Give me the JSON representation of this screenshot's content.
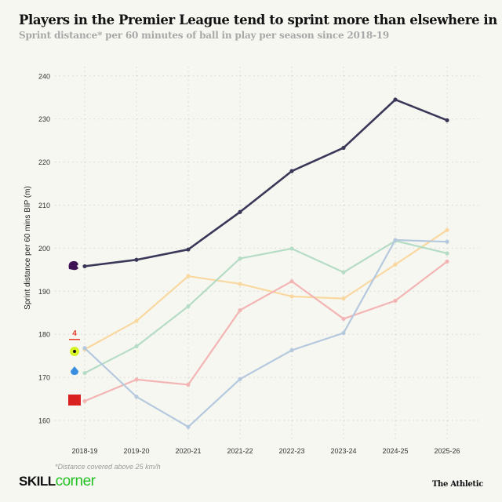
{
  "header": {
    "title": "Players in the Premier League tend to sprint more than elsewhere in Europe",
    "subtitle": "Sprint distance* per 60 minutes of ball in play per season since 2018-19"
  },
  "footer": {
    "note": "*Distance covered above 25 km/h",
    "brand_a": "SKILL",
    "brand_b": "corner",
    "publisher": "The Athletic"
  },
  "chart_data": {
    "type": "line",
    "title": "Players in the Premier League tend to sprint more than elsewhere in Europe",
    "ylabel": "Sprint distance per 60 mins BIP (m)",
    "xlabel": "",
    "categories": [
      "2018-19",
      "2019-20",
      "2020-21",
      "2021-22",
      "2022-23",
      "2023-24",
      "2024-25",
      "2025-26"
    ],
    "ylim": [
      156,
      244
    ],
    "yticks": [
      160,
      170,
      180,
      190,
      200,
      210,
      220,
      230,
      240
    ],
    "grid": true,
    "series": [
      {
        "color": "#f9d8a0",
        "values": [
          176.5,
          183.1,
          193.5,
          191.7,
          188.8,
          188.3,
          196.2,
          204.2
        ]
      },
      {
        "color": "#b5dcc4",
        "values": [
          171.0,
          177.2,
          186.5,
          197.6,
          199.9,
          194.4,
          201.7,
          198.8
        ]
      },
      {
        "color": "#f3b5b3",
        "values": [
          164.5,
          169.5,
          168.3,
          185.6,
          192.3,
          183.6,
          187.8,
          196.9
        ]
      },
      {
        "color": "#b5c9de",
        "values": [
          176.8,
          165.5,
          158.5,
          169.6,
          176.3,
          180.3,
          201.9,
          201.5
        ]
      },
      {
        "color": "#3a3858",
        "values": [
          195.8,
          197.3,
          199.7,
          208.4,
          217.9,
          223.3,
          234.5,
          229.7
        ]
      }
    ],
    "league_logos": [
      "premier-league",
      "laliga",
      "ligue-1",
      "serie-a",
      "bundesliga"
    ]
  }
}
